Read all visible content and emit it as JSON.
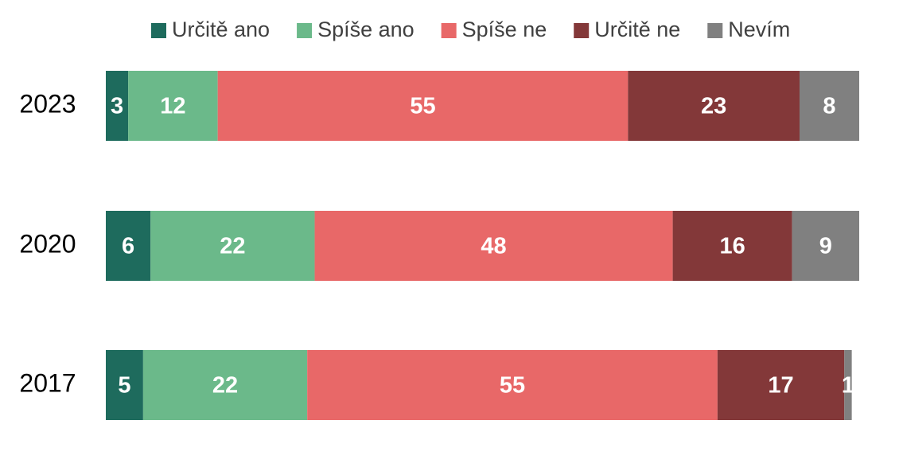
{
  "chart_data": {
    "type": "stacked-bar-horizontal",
    "categories": [
      "2023",
      "2020",
      "2017"
    ],
    "series": [
      {
        "name": "Určitě ano",
        "color": "#1e6b5d",
        "values": [
          3,
          6,
          5
        ]
      },
      {
        "name": "Spíše ano",
        "color": "#6bb98a",
        "values": [
          12,
          22,
          22
        ]
      },
      {
        "name": "Spíše ne",
        "color": "#e86868",
        "values": [
          55,
          48,
          55
        ]
      },
      {
        "name": "Určitě ne",
        "color": "#833839",
        "values": [
          23,
          16,
          17
        ]
      },
      {
        "name": "Nevím",
        "color": "#808080",
        "values": [
          8,
          9,
          1
        ]
      }
    ],
    "xlim": [
      0,
      101
    ],
    "legend": "top"
  }
}
